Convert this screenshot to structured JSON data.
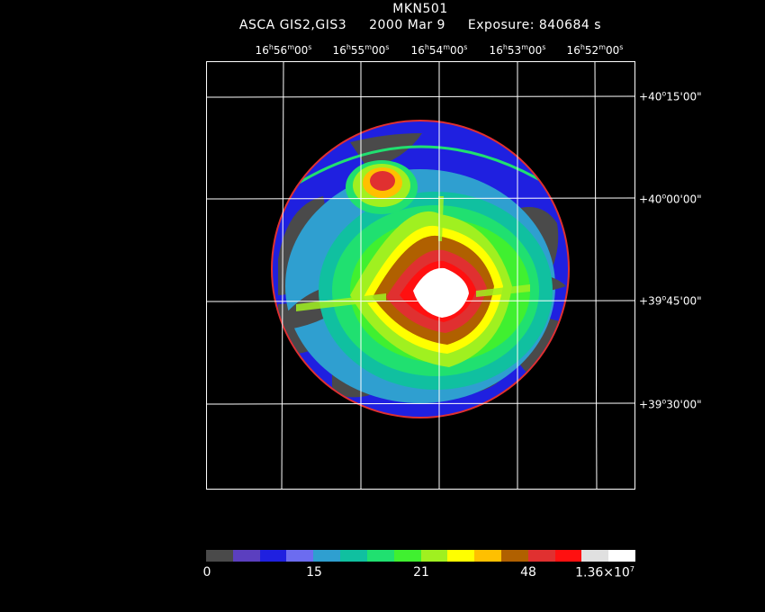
{
  "header": {
    "object": "MKN501",
    "instrument": "ASCA GIS2,GIS3",
    "date": "2000 Mar  9",
    "exposure": "Exposure: 840684 s"
  },
  "axes": {
    "ra_labels": [
      {
        "h": "16",
        "m": "56",
        "s": "00"
      },
      {
        "h": "16",
        "m": "55",
        "s": "00"
      },
      {
        "h": "16",
        "m": "54",
        "s": "00"
      },
      {
        "h": "16",
        "m": "53",
        "s": "00"
      },
      {
        "h": "16",
        "m": "52",
        "s": "00"
      }
    ],
    "dec_labels": [
      {
        "sign": "+",
        "d": "40",
        "m": "15",
        "s": "00"
      },
      {
        "sign": "+",
        "d": "40",
        "m": "00",
        "s": "00"
      },
      {
        "sign": "+",
        "d": "39",
        "m": "45",
        "s": "00"
      },
      {
        "sign": "+",
        "d": "39",
        "m": "30",
        "s": "00"
      }
    ]
  },
  "colorbar": {
    "colors": [
      "#4a4a4a",
      "#5b3fbf",
      "#1f20e0",
      "#6c6cf0",
      "#2f9fd0",
      "#10c0a0",
      "#20e070",
      "#40f030",
      "#a0f020",
      "#ffff00",
      "#ffc000",
      "#b06000",
      "#e03030",
      "#ff1010",
      "#e0e0e0",
      "#ffffff"
    ],
    "labels": [
      "0",
      "15",
      "21",
      "48",
      "1.36×10"
    ],
    "exponent": "7"
  }
}
